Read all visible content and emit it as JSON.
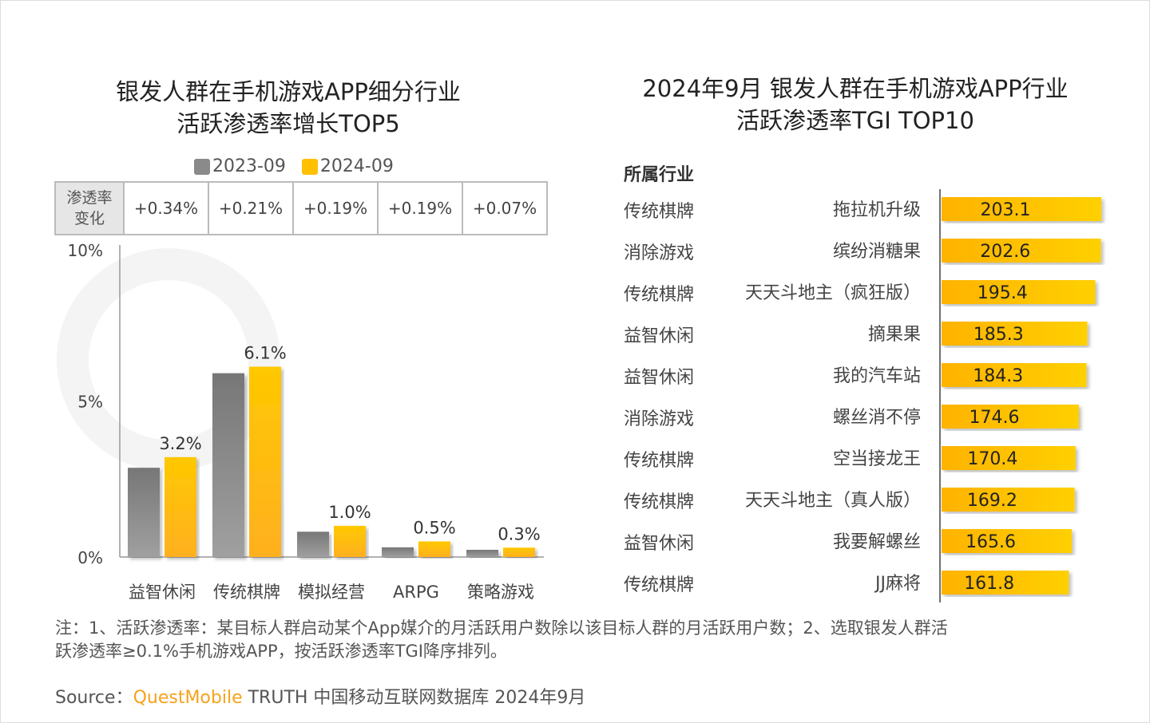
{
  "chart_data": [
    {
      "type": "bar",
      "title": "银发人群在手机游戏APP细分行业\n活跃渗透率增长TOP5",
      "title_lines": [
        "银发人群在手机游戏APP细分行业",
        "活跃渗透率增长TOP5"
      ],
      "categories": [
        "益智休闲",
        "传统棋牌",
        "模拟经营",
        "ARPG",
        "策略游戏"
      ],
      "series": [
        {
          "name": "2023-09",
          "values": [
            2.86,
            5.89,
            0.81,
            0.31,
            0.23
          ],
          "color": "#8a8a8a"
        },
        {
          "name": "2024-09",
          "values": [
            3.2,
            6.1,
            1.0,
            0.5,
            0.3
          ],
          "color": "#ffc000",
          "labels": [
            "3.2%",
            "6.1%",
            "1.0%",
            "0.5%",
            "0.3%"
          ]
        }
      ],
      "yticks": [
        "0%",
        "5%",
        "10%"
      ],
      "ylim": [
        0,
        10
      ],
      "table_header": [
        "渗透率",
        "变化"
      ],
      "table_values": [
        "+0.34%",
        "+0.21%",
        "+0.19%",
        "+0.19%",
        "+0.07%"
      ],
      "legend": "top"
    },
    {
      "type": "bar",
      "orientation": "horizontal",
      "title_lines": [
        "2024年9月 银发人群在手机游戏APP行业",
        "活跃渗透率TGI TOP10"
      ],
      "column_header": "所属行业",
      "industries": [
        "传统棋牌",
        "消除游戏",
        "传统棋牌",
        "益智休闲",
        "益智休闲",
        "消除游戏",
        "传统棋牌",
        "传统棋牌",
        "益智休闲",
        "传统棋牌"
      ],
      "categories": [
        "拖拉机升级",
        "缤纷消糖果",
        "天天斗地主（疯狂版）",
        "摘果果",
        "我的汽车站",
        "螺丝消不停",
        "空当接龙王",
        "天天斗地主（真人版）",
        "我要解螺丝",
        "JJ麻将"
      ],
      "values": [
        203.1,
        202.6,
        195.4,
        185.3,
        184.3,
        174.6,
        170.4,
        169.2,
        165.6,
        161.8
      ],
      "labels": [
        "203.1",
        "202.6",
        "195.4",
        "185.3",
        "184.3",
        "174.6",
        "170.4",
        "169.2",
        "165.6",
        "161.8"
      ],
      "color": "#ffc000"
    }
  ],
  "note_lines": [
    "注：1、活跃渗透率：某目标人群启动某个App媒介的月活跃用户数除以该目标人群的月活跃用户数；2、选取银发人群活",
    "跃渗透率≥0.1%手机游戏APP，按活跃渗透率TGI降序排列。"
  ],
  "source": {
    "label": "Source：",
    "brand": "QuestMobile",
    "rest": " TRUTH 中国移动互联网数据库 2024年9月"
  },
  "watermark": "QUESTMOBILE",
  "colors": {
    "brand": "#f7a21b",
    "gray": "#8a8a8a",
    "yellow": "#ffc000"
  }
}
